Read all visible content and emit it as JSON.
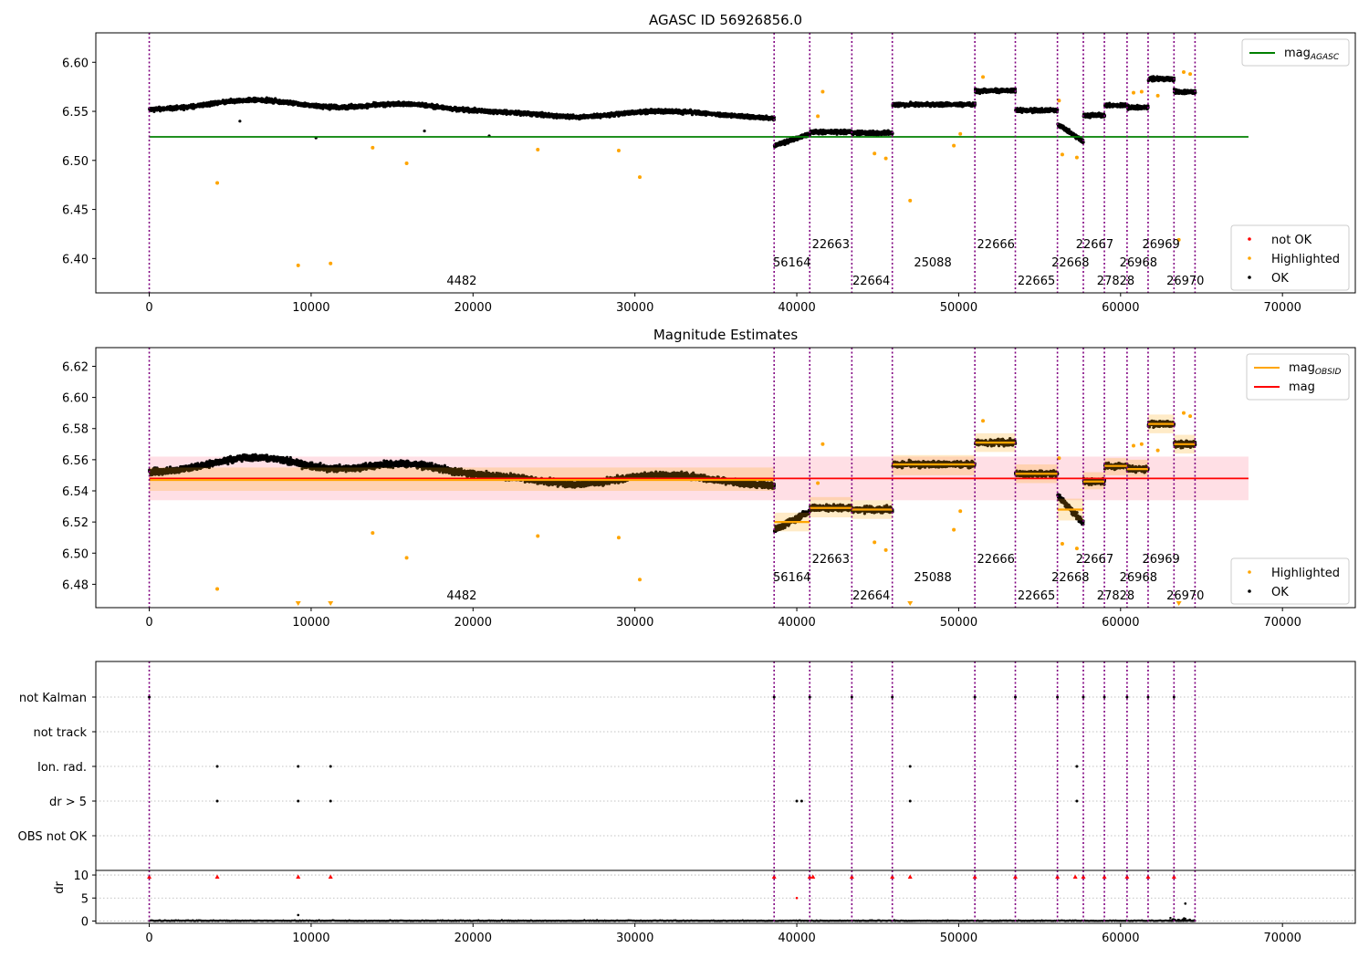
{
  "chart_data": [
    {
      "type": "scatter",
      "title": "AGASC ID 56926856.0",
      "xlim": [
        -3300,
        74500
      ],
      "ylim": [
        6.365,
        6.63
      ],
      "x_ticks": [
        0,
        10000,
        20000,
        30000,
        40000,
        50000,
        60000,
        70000
      ],
      "y_ticks": [
        6.4,
        6.45,
        6.5,
        6.55,
        6.6
      ],
      "y_decimals": 2,
      "obsid_boundaries": [
        0,
        38600,
        40800,
        43400,
        45900,
        51000,
        53500,
        56100,
        57700,
        59000,
        60400,
        61700,
        63300,
        64600
      ],
      "obsids": [
        {
          "label": "4482",
          "x": 19300,
          "row": 2
        },
        {
          "label": "56164",
          "x": 39700,
          "row": 1
        },
        {
          "label": "22663",
          "x": 42100,
          "row": 0
        },
        {
          "label": "22664",
          "x": 44600,
          "row": 2
        },
        {
          "label": "25088",
          "x": 48400,
          "row": 1
        },
        {
          "label": "22666",
          "x": 52300,
          "row": 0
        },
        {
          "label": "22665",
          "x": 54800,
          "row": 2
        },
        {
          "label": "22668",
          "x": 56900,
          "row": 1
        },
        {
          "label": "22667",
          "x": 58400,
          "row": 0
        },
        {
          "label": "27828",
          "x": 59700,
          "row": 2
        },
        {
          "label": "26968",
          "x": 61100,
          "row": 1
        },
        {
          "label": "26969",
          "x": 62500,
          "row": 0
        },
        {
          "label": "26970",
          "x": 64000,
          "row": 2
        }
      ],
      "reference_line": {
        "name": "mag_AGASC",
        "y": 6.524,
        "x_range": [
          0,
          67900
        ],
        "color": "#008000"
      },
      "legend_lines": [
        {
          "text": "mag",
          "sub": "AGASC",
          "color": "#008000"
        }
      ],
      "legend_points": [
        {
          "text": "not OK",
          "color": "#ff0000"
        },
        {
          "text": "Highlighted",
          "color": "#ffa500"
        },
        {
          "text": "OK",
          "color": "#000000"
        }
      ],
      "highlighted_points": [
        [
          4200,
          6.477
        ],
        [
          9200,
          6.393
        ],
        [
          11200,
          6.395
        ],
        [
          13800,
          6.513
        ],
        [
          15900,
          6.497
        ],
        [
          24000,
          6.511
        ],
        [
          29000,
          6.51
        ],
        [
          30300,
          6.483
        ],
        [
          41600,
          6.57
        ],
        [
          41300,
          6.545
        ],
        [
          44800,
          6.507
        ],
        [
          45500,
          6.502
        ],
        [
          47000,
          6.459
        ],
        [
          49700,
          6.515
        ],
        [
          50100,
          6.527
        ],
        [
          56400,
          6.506
        ],
        [
          57300,
          6.503
        ],
        [
          60800,
          6.569
        ],
        [
          61300,
          6.57
        ],
        [
          63600,
          6.419
        ],
        [
          62300,
          6.566
        ],
        [
          63900,
          6.59
        ],
        [
          64300,
          6.588
        ],
        [
          56200,
          6.561
        ],
        [
          51500,
          6.585
        ]
      ],
      "outlier_ok_points": [
        [
          5600,
          6.54
        ],
        [
          10300,
          6.523
        ],
        [
          17000,
          6.53
        ],
        [
          21000,
          6.525
        ]
      ]
    },
    {
      "type": "scatter",
      "title": "Magnitude Estimates",
      "xlim": [
        -3300,
        74500
      ],
      "ylim": [
        6.465,
        6.632
      ],
      "x_ticks": [
        0,
        10000,
        20000,
        30000,
        40000,
        50000,
        60000,
        70000
      ],
      "y_ticks": [
        6.48,
        6.5,
        6.52,
        6.54,
        6.56,
        6.58,
        6.6,
        6.62
      ],
      "y_decimals": 2,
      "reference_line": {
        "name": "mag",
        "y": 6.548,
        "x_range": [
          0,
          67900
        ],
        "color": "#ff0000"
      },
      "mag_band": [
        6.534,
        6.562
      ],
      "obsid_mag": [
        {
          "x0": 0,
          "x1": 38600,
          "y": 6.547,
          "band": [
            6.54,
            6.555
          ]
        },
        {
          "x0": 38600,
          "x1": 40800,
          "y": 6.52,
          "band": [
            6.514,
            6.526
          ]
        },
        {
          "x0": 40800,
          "x1": 43400,
          "y": 6.529,
          "band": [
            6.523,
            6.536
          ]
        },
        {
          "x0": 43400,
          "x1": 45900,
          "y": 6.528,
          "band": [
            6.522,
            6.534
          ]
        },
        {
          "x0": 45900,
          "x1": 51000,
          "y": 6.557,
          "band": [
            6.55,
            6.563
          ]
        },
        {
          "x0": 51000,
          "x1": 53500,
          "y": 6.571,
          "band": [
            6.565,
            6.577
          ]
        },
        {
          "x0": 53500,
          "x1": 56100,
          "y": 6.551,
          "band": [
            6.545,
            6.557
          ]
        },
        {
          "x0": 56100,
          "x1": 57700,
          "y": 6.528,
          "band": [
            6.521,
            6.535
          ]
        },
        {
          "x0": 57700,
          "x1": 59000,
          "y": 6.546,
          "band": [
            6.541,
            6.552
          ]
        },
        {
          "x0": 59000,
          "x1": 60400,
          "y": 6.556,
          "band": [
            6.55,
            6.561
          ]
        },
        {
          "x0": 60400,
          "x1": 61700,
          "y": 6.554,
          "band": [
            6.549,
            6.56
          ]
        },
        {
          "x0": 61700,
          "x1": 63300,
          "y": 6.583,
          "band": [
            6.577,
            6.589
          ]
        },
        {
          "x0": 63300,
          "x1": 64600,
          "y": 6.57,
          "band": [
            6.564,
            6.576
          ]
        }
      ],
      "legend_lines": [
        {
          "text": "mag",
          "sub": "OBSID",
          "color": "#ffa500"
        },
        {
          "text": "mag",
          "sub": "",
          "color": "#ff0000"
        }
      ],
      "legend_points": [
        {
          "text": "Highlighted",
          "color": "#ffa500"
        },
        {
          "text": "OK",
          "color": "#000000"
        }
      ],
      "clipped_markers": [
        9200,
        11200,
        47000,
        63600
      ]
    },
    {
      "type": "scatter",
      "xlim": [
        -3300,
        74500
      ],
      "x_ticks": [
        0,
        10000,
        20000,
        30000,
        40000,
        50000,
        60000,
        70000
      ],
      "flag_rows": [
        "not Kalman",
        "not track",
        "Ion. rad.",
        "dr > 5",
        "OBS not OK"
      ],
      "flag_points": {
        "not Kalman": [
          0,
          38600,
          40800,
          43400,
          45900,
          51000,
          53500,
          56100,
          57700,
          59000,
          60400,
          61700,
          63300
        ],
        "not track": [],
        "Ion. rad.": [
          4200,
          9200,
          11200,
          47000,
          57300
        ],
        "dr > 5": [
          4200,
          9200,
          11200,
          40000,
          40300,
          47000,
          57300
        ],
        "OBS not OK": []
      },
      "dr_ylabel": "dr",
      "dr_ylim": [
        -0.5,
        11
      ],
      "dr_ticks": [
        0,
        5,
        10
      ],
      "dr_high_points": [
        0,
        4200,
        9200,
        11200,
        38600,
        40800,
        41000,
        43400,
        45900,
        47000,
        51000,
        53500,
        56100,
        57200,
        57700,
        59000,
        60400,
        61700,
        63300
      ],
      "dr_mid_points": [
        [
          40000,
          5.0
        ],
        [
          64000,
          3.8
        ],
        [
          9200,
          1.3
        ]
      ]
    }
  ]
}
